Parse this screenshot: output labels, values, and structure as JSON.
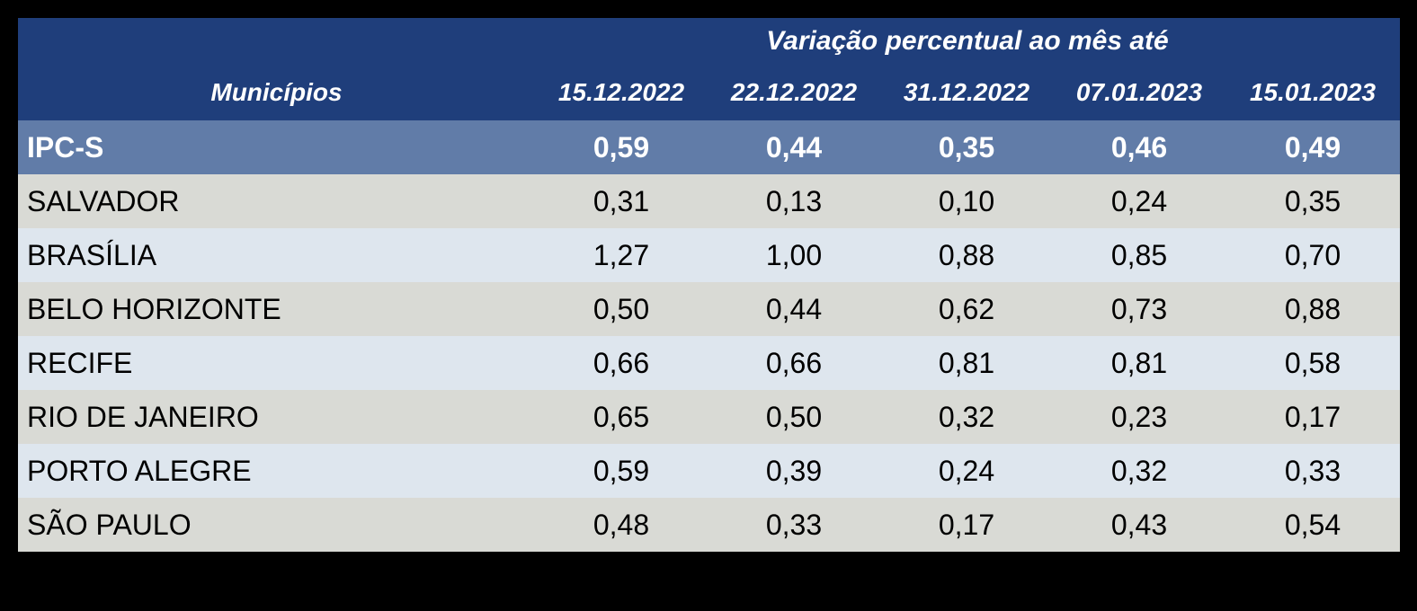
{
  "table": {
    "header": {
      "group_title": "Variação percentual ao mês até",
      "municipios_label": "Municípios",
      "date_columns": [
        "15.12.2022",
        "22.12.2022",
        "31.12.2022",
        "07.01.2023",
        "15.01.2023"
      ]
    },
    "summary_row": {
      "label": "IPC-S",
      "values": [
        "0,59",
        "0,44",
        "0,35",
        "0,46",
        "0,49"
      ]
    },
    "rows": [
      {
        "label": "SALVADOR",
        "values": [
          "0,31",
          "0,13",
          "0,10",
          "0,24",
          "0,35"
        ]
      },
      {
        "label": "BRASÍLIA",
        "values": [
          "1,27",
          "1,00",
          "0,88",
          "0,85",
          "0,70"
        ]
      },
      {
        "label": "BELO HORIZONTE",
        "values": [
          "0,50",
          "0,44",
          "0,62",
          "0,73",
          "0,88"
        ]
      },
      {
        "label": "RECIFE",
        "values": [
          "0,66",
          "0,66",
          "0,81",
          "0,81",
          "0,58"
        ]
      },
      {
        "label": "RIO DE JANEIRO",
        "values": [
          "0,65",
          "0,50",
          "0,32",
          "0,23",
          "0,17"
        ]
      },
      {
        "label": "PORTO ALEGRE",
        "values": [
          "0,59",
          "0,39",
          "0,24",
          "0,32",
          "0,33"
        ]
      },
      {
        "label": "SÃO PAULO",
        "values": [
          "0,48",
          "0,33",
          "0,17",
          "0,43",
          "0,54"
        ]
      }
    ],
    "colors": {
      "page_background": "#000000",
      "header_background": "#1F3E7B",
      "summary_row_background": "#617CA8",
      "row_gray": "#D9DAD5",
      "row_light_blue": "#DEE6EE",
      "header_text": "#FFFFFF",
      "summary_text": "#FFFFFF",
      "row_text": "#000000"
    }
  },
  "chart_data": {
    "type": "table",
    "title": "Variação percentual ao mês até",
    "xlabel": "Municípios",
    "categories": [
      "15.12.2022",
      "22.12.2022",
      "31.12.2022",
      "07.01.2023",
      "15.01.2023"
    ],
    "series": [
      {
        "name": "IPC-S",
        "values": [
          0.59,
          0.44,
          0.35,
          0.46,
          0.49
        ]
      },
      {
        "name": "SALVADOR",
        "values": [
          0.31,
          0.13,
          0.1,
          0.24,
          0.35
        ]
      },
      {
        "name": "BRASÍLIA",
        "values": [
          1.27,
          1.0,
          0.88,
          0.85,
          0.7
        ]
      },
      {
        "name": "BELO HORIZONTE",
        "values": [
          0.5,
          0.44,
          0.62,
          0.73,
          0.88
        ]
      },
      {
        "name": "RECIFE",
        "values": [
          0.66,
          0.66,
          0.81,
          0.81,
          0.58
        ]
      },
      {
        "name": "RIO DE JANEIRO",
        "values": [
          0.65,
          0.5,
          0.32,
          0.23,
          0.17
        ]
      },
      {
        "name": "PORTO ALEGRE",
        "values": [
          0.59,
          0.39,
          0.24,
          0.32,
          0.33
        ]
      },
      {
        "name": "SÃO PAULO",
        "values": [
          0.48,
          0.33,
          0.17,
          0.43,
          0.54
        ]
      }
    ],
    "decimal_separator": ",",
    "unit": "percent"
  }
}
